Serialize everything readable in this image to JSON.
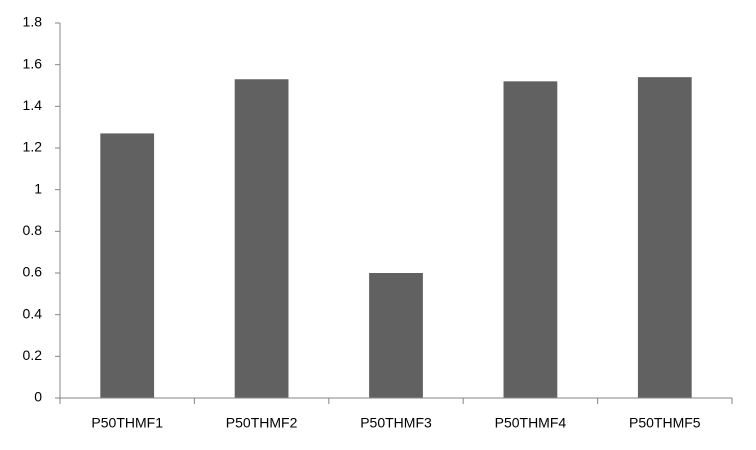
{
  "chart_data": {
    "type": "bar",
    "categories": [
      "P50THMF1",
      "P50THMF2",
      "P50THMF3",
      "P50THMF4",
      "P50THMF5"
    ],
    "values": [
      1.27,
      1.53,
      0.6,
      1.52,
      1.54
    ],
    "color": "#616161",
    "ylim": [
      0,
      1.8
    ],
    "yticks": [
      0,
      0.2,
      0.4,
      0.6,
      0.8,
      1,
      1.2,
      1.4,
      1.6,
      1.8
    ],
    "grid": false
  }
}
